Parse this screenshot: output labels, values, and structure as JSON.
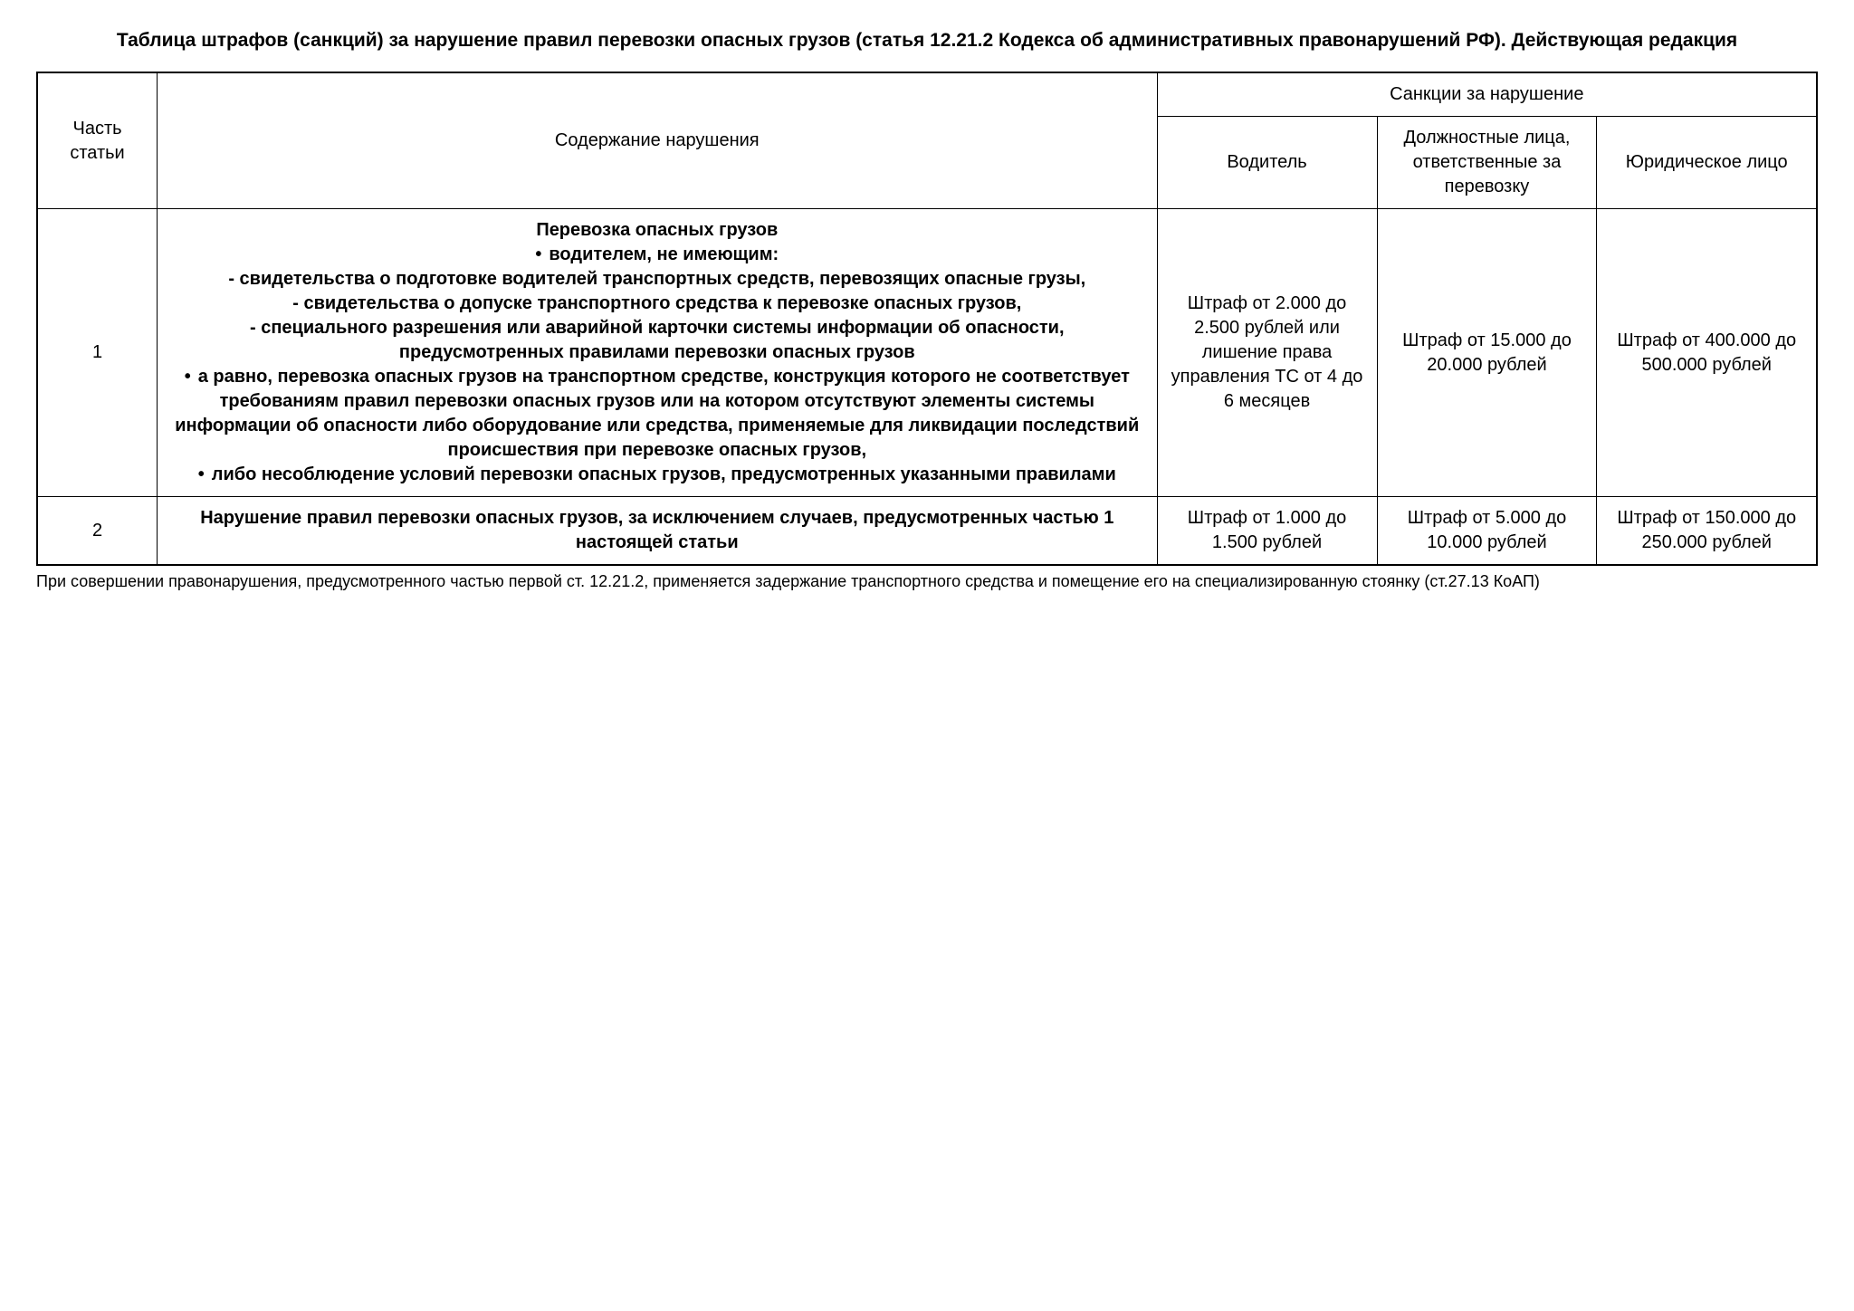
{
  "title": "Таблица штрафов (санкций) за нарушение правил перевозки опасных грузов (статья 12.21.2 Кодекса об административных правонарушений РФ). Действующая редакция",
  "headers": {
    "part": "Часть статьи",
    "content": "Содержание нарушения",
    "sanctions_group": "Санкции за нарушение",
    "driver": "Водитель",
    "officials": "Должностные лица, ответственные за перевозку",
    "legal_entity": "Юридическое лицо"
  },
  "rows": [
    {
      "part": "1",
      "content": {
        "heading": "Перевозка опасных грузов",
        "bullets": [
          "водителем, не имеющим:"
        ],
        "sub_items": [
          "- свидетельства о подготовке водителей транспортных средств, перевозящих опасные грузы,",
          "- свидетельства о допуске транспортного средства к перевозке опасных грузов,",
          "- специального разрешения или аварийной карточки системы информации об опасности, предусмотренных правилами перевозки опасных грузов"
        ],
        "bullets2": [
          "а равно, перевозка опасных грузов на транспортном средстве, конструкция которого не соответствует требованиям правил перевозки опасных грузов или на котором отсутствуют элементы системы информации об опасности либо оборудование или средства, применяемые для ликвидации последствий происшествия при перевозке опасных грузов,",
          "либо несоблюдение условий перевозки опасных грузов, предусмотренных указанными правилами"
        ]
      },
      "driver": "Штраф от 2.000 до 2.500 рублей или лишение права управления ТС от 4 до 6 месяцев",
      "officials": "Штраф от 15.000 до 20.000 рублей",
      "legal_entity": "Штраф от 400.000 до 500.000 рублей"
    },
    {
      "part": "2",
      "content_plain": "Нарушение правил перевозки опасных грузов, за исключением случаев, предусмотренных частью 1 настоящей статьи",
      "driver": "Штраф от 1.000 до 1.500 рублей",
      "officials": "Штраф от 5.000 до 10.000 рублей",
      "legal_entity": "Штраф от 150.000 до 250.000 рублей"
    }
  ],
  "footnote": "При совершении правонарушения, предусмотренного частью первой ст. 12.21.2, применяется задержание транспортного средства и помещение его на специализированную стоянку (ст.27.13 КоАП)"
}
